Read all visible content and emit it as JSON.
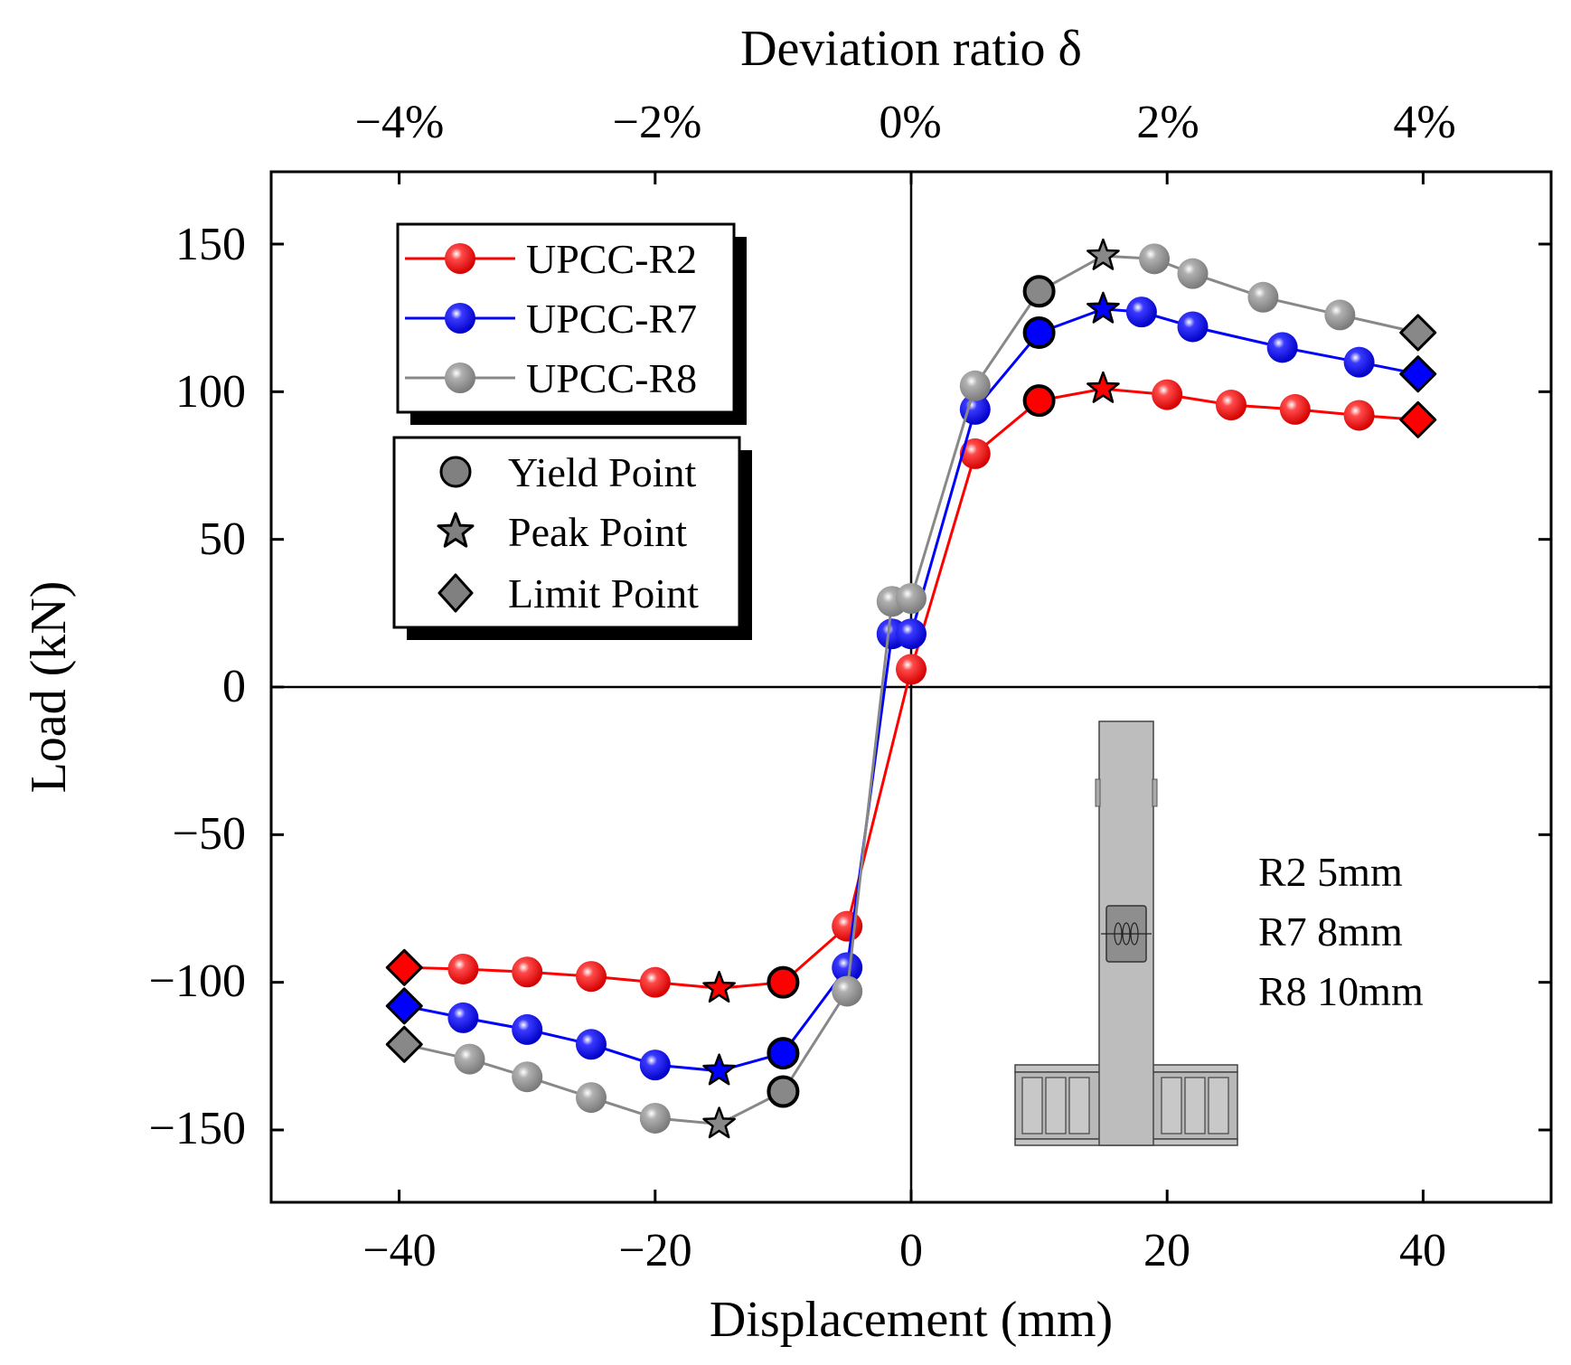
{
  "chart_data": {
    "type": "line",
    "xlabel": "Displacement (mm)",
    "ylabel": "Load (kN)",
    "x2label": "Deviation ratio δ",
    "xlim": [
      -50,
      50
    ],
    "ylim": [
      -175,
      175
    ],
    "xticks": [
      -40,
      -20,
      0,
      20,
      40
    ],
    "xtick_labels": [
      "−40",
      "−20",
      "0",
      "20",
      "40"
    ],
    "yticks": [
      -150,
      -100,
      -50,
      0,
      50,
      100,
      150
    ],
    "ytick_labels": [
      "−150",
      "−100",
      "−50",
      "0",
      "50",
      "100",
      "150"
    ],
    "x2ticks": [
      -40,
      -20,
      0,
      20,
      40
    ],
    "x2tick_labels": [
      "−4%",
      "−2%",
      "0%",
      "2%",
      "4%"
    ],
    "series": [
      {
        "name": "UPCC-R2",
        "color": "#ff0000",
        "points": [
          [
            -39.6,
            -95
          ],
          [
            -35,
            -95.5
          ],
          [
            -30,
            -96.5
          ],
          [
            -25,
            -98
          ],
          [
            -20,
            -100
          ],
          [
            -15,
            -102
          ],
          [
            -10,
            -100
          ],
          [
            -5,
            -81
          ],
          [
            0,
            6
          ],
          [
            5,
            79
          ],
          [
            10,
            97
          ],
          [
            15,
            101
          ],
          [
            20,
            99
          ],
          [
            25,
            95.5
          ],
          [
            30,
            94
          ],
          [
            35,
            92
          ],
          [
            39.6,
            90.5
          ]
        ],
        "yield": [
          [
            -10,
            -100
          ],
          [
            10,
            97
          ]
        ],
        "peak": [
          [
            -15,
            -102
          ],
          [
            15,
            101
          ]
        ],
        "limit": [
          [
            -39.6,
            -95
          ],
          [
            39.6,
            90.5
          ]
        ]
      },
      {
        "name": "UPCC-R7",
        "color": "#0000ff",
        "points": [
          [
            -39.6,
            -108
          ],
          [
            -35,
            -112
          ],
          [
            -30,
            -116
          ],
          [
            -25,
            -121
          ],
          [
            -20,
            -128
          ],
          [
            -15,
            -130
          ],
          [
            -10,
            -124
          ],
          [
            -5,
            -95
          ],
          [
            -1.5,
            18
          ],
          [
            0,
            18
          ],
          [
            5,
            94
          ],
          [
            10,
            120
          ],
          [
            15,
            128
          ],
          [
            18,
            127
          ],
          [
            22,
            122
          ],
          [
            29,
            115
          ],
          [
            35,
            110
          ],
          [
            39.6,
            106
          ]
        ],
        "yield": [
          [
            -10,
            -124
          ],
          [
            10,
            120
          ]
        ],
        "peak": [
          [
            -15,
            -130
          ],
          [
            15,
            128
          ]
        ],
        "limit": [
          [
            -39.6,
            -108
          ],
          [
            39.6,
            106
          ]
        ]
      },
      {
        "name": "UPCC-R8",
        "color": "#888888",
        "points": [
          [
            -39.6,
            -121
          ],
          [
            -34.5,
            -126
          ],
          [
            -30,
            -132
          ],
          [
            -25,
            -139
          ],
          [
            -20,
            -146
          ],
          [
            -15,
            -148
          ],
          [
            -10,
            -137
          ],
          [
            -5,
            -103
          ],
          [
            -1.5,
            29
          ],
          [
            0,
            30
          ],
          [
            5,
            102
          ],
          [
            10,
            134
          ],
          [
            15,
            146
          ],
          [
            19,
            145
          ],
          [
            22,
            140
          ],
          [
            27.5,
            132
          ],
          [
            33.5,
            126
          ],
          [
            39.6,
            120
          ]
        ],
        "yield": [
          [
            -10,
            -137
          ],
          [
            10,
            134
          ]
        ],
        "peak": [
          [
            -15,
            -148
          ],
          [
            15,
            146
          ]
        ],
        "limit": [
          [
            -39.6,
            -121
          ],
          [
            39.6,
            120
          ]
        ]
      }
    ],
    "legend_series": [
      "UPCC-R2",
      "UPCC-R7",
      "UPCC-R8"
    ],
    "legend_markers": [
      "Yield Point",
      "Peak Point",
      "Limit Point"
    ],
    "annotation": [
      "R2 5mm",
      "R7 8mm",
      "R8 10mm"
    ]
  }
}
